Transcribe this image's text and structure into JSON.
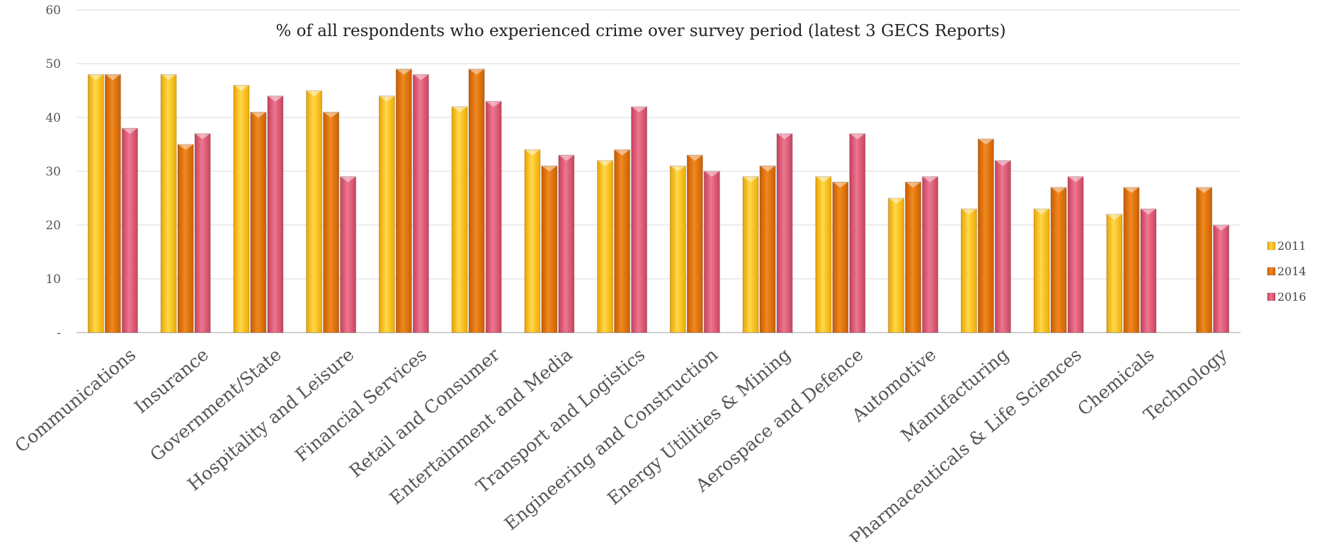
{
  "chart_data": {
    "type": "bar",
    "title": "% of all respondents who experienced crime over survey period (latest 3 GECS Reports)",
    "xlabel": "",
    "ylabel": "",
    "ylim": [
      0,
      60
    ],
    "yticks": [
      {
        "value": 0,
        "label": "-"
      },
      {
        "value": 10,
        "label": "10"
      },
      {
        "value": 20,
        "label": "20"
      },
      {
        "value": 30,
        "label": "30"
      },
      {
        "value": 40,
        "label": "40"
      },
      {
        "value": 50,
        "label": "50"
      },
      {
        "value": 60,
        "label": "60"
      }
    ],
    "grid": true,
    "legend_position": "right",
    "categories": [
      "Communications",
      "Insurance",
      "Government/State",
      "Hospitality and Leisure",
      "Financial Services",
      "Retail and Consumer",
      "Entertainment and Media",
      "Transport and Logistics",
      "Engineering and Construction",
      "Energy Utilities & Mining",
      "Aerospace and Defence",
      "Automotive",
      "Manufacturing",
      "Pharmaceuticals & Life Sciences",
      "Chemicals",
      "Technology"
    ],
    "series": [
      {
        "name": "2011",
        "color": "#F8B800",
        "values": [
          48,
          48,
          46,
          45,
          44,
          42,
          34,
          32,
          31,
          29,
          29,
          25,
          23,
          23,
          22,
          null
        ]
      },
      {
        "name": "2014",
        "color": "#E06C00",
        "values": [
          48,
          35,
          41,
          41,
          49,
          49,
          31,
          34,
          33,
          31,
          28,
          28,
          36,
          27,
          27,
          27
        ]
      },
      {
        "name": "2016",
        "color": "#DC4F6A",
        "values": [
          38,
          37,
          44,
          29,
          48,
          43,
          33,
          42,
          30,
          37,
          37,
          29,
          32,
          29,
          23,
          20
        ]
      }
    ]
  }
}
